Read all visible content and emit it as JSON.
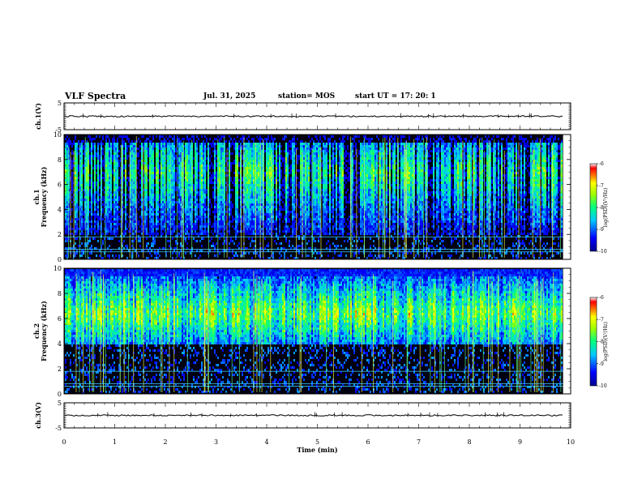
{
  "header": {
    "title": "VLF Spectra",
    "date": "Jul. 31, 2025",
    "station": "station= MOS",
    "start": "start UT =  17: 20: 1"
  },
  "chart_data": [
    {
      "type": "line",
      "ylabel": "ch.1(V)",
      "ylim": [
        -5,
        5
      ],
      "ticks": [
        {
          "v": 5,
          "label": "5"
        },
        {
          "v": -5,
          "label": "-5"
        }
      ],
      "level": 0
    },
    {
      "type": "heatmap",
      "ylabel_lines": [
        "ch.1",
        "Frequency (kHz)"
      ],
      "ylim": [
        0,
        10
      ],
      "ticks": [
        {
          "v": 0,
          "label": "0"
        },
        {
          "v": 2,
          "label": "2"
        },
        {
          "v": 4,
          "label": "4"
        },
        {
          "v": 6,
          "label": "6"
        },
        {
          "v": 8,
          "label": "8"
        },
        {
          "v": 10,
          "label": "10"
        }
      ],
      "band_khz": [
        2,
        9.5
      ],
      "colorbar": {
        "label": "log(PSD)(V²/Hz)",
        "range": [
          -10,
          -6
        ],
        "ticks": [
          {
            "v": -6,
            "label": "-6"
          },
          {
            "v": -7,
            "label": "-7"
          },
          {
            "v": -8,
            "label": "-8"
          },
          {
            "v": -9,
            "label": "-9"
          },
          {
            "v": -10,
            "label": "-10"
          }
        ]
      }
    },
    {
      "type": "heatmap",
      "ylabel_lines": [
        "ch.2",
        "Frequency (kHz)"
      ],
      "ylim": [
        0,
        10
      ],
      "ticks": [
        {
          "v": 0,
          "label": "0"
        },
        {
          "v": 2,
          "label": "2"
        },
        {
          "v": 4,
          "label": "4"
        },
        {
          "v": 6,
          "label": "6"
        },
        {
          "v": 8,
          "label": "8"
        },
        {
          "v": 10,
          "label": "10"
        }
      ],
      "band_khz": [
        4,
        9.5
      ],
      "colorbar": {
        "label": "log(PSD)(V²/Hz)",
        "range": [
          -10,
          -6
        ],
        "ticks": [
          {
            "v": -6,
            "label": "-6"
          },
          {
            "v": -7,
            "label": "-7"
          },
          {
            "v": -8,
            "label": "-8"
          },
          {
            "v": -9,
            "label": "-9"
          },
          {
            "v": -10,
            "label": "-10"
          }
        ]
      }
    },
    {
      "type": "line",
      "ylabel": "ch.3(V)",
      "ylim": [
        -5,
        5
      ],
      "ticks": [
        {
          "v": 5,
          "label": "5"
        },
        {
          "v": -5,
          "label": "-5"
        }
      ],
      "level": 0
    }
  ],
  "x_axis": {
    "label": "Time (min)",
    "xlim": [
      0,
      10
    ],
    "data_end": 9.85,
    "ticks": [
      {
        "v": 0,
        "label": "0"
      },
      {
        "v": 1,
        "label": "1"
      },
      {
        "v": 2,
        "label": "2"
      },
      {
        "v": 3,
        "label": "3"
      },
      {
        "v": 4,
        "label": "4"
      },
      {
        "v": 5,
        "label": "5"
      },
      {
        "v": 6,
        "label": "6"
      },
      {
        "v": 7,
        "label": "7"
      },
      {
        "v": 8,
        "label": "8"
      },
      {
        "v": 9,
        "label": "9"
      },
      {
        "v": 10,
        "label": "10"
      }
    ]
  }
}
